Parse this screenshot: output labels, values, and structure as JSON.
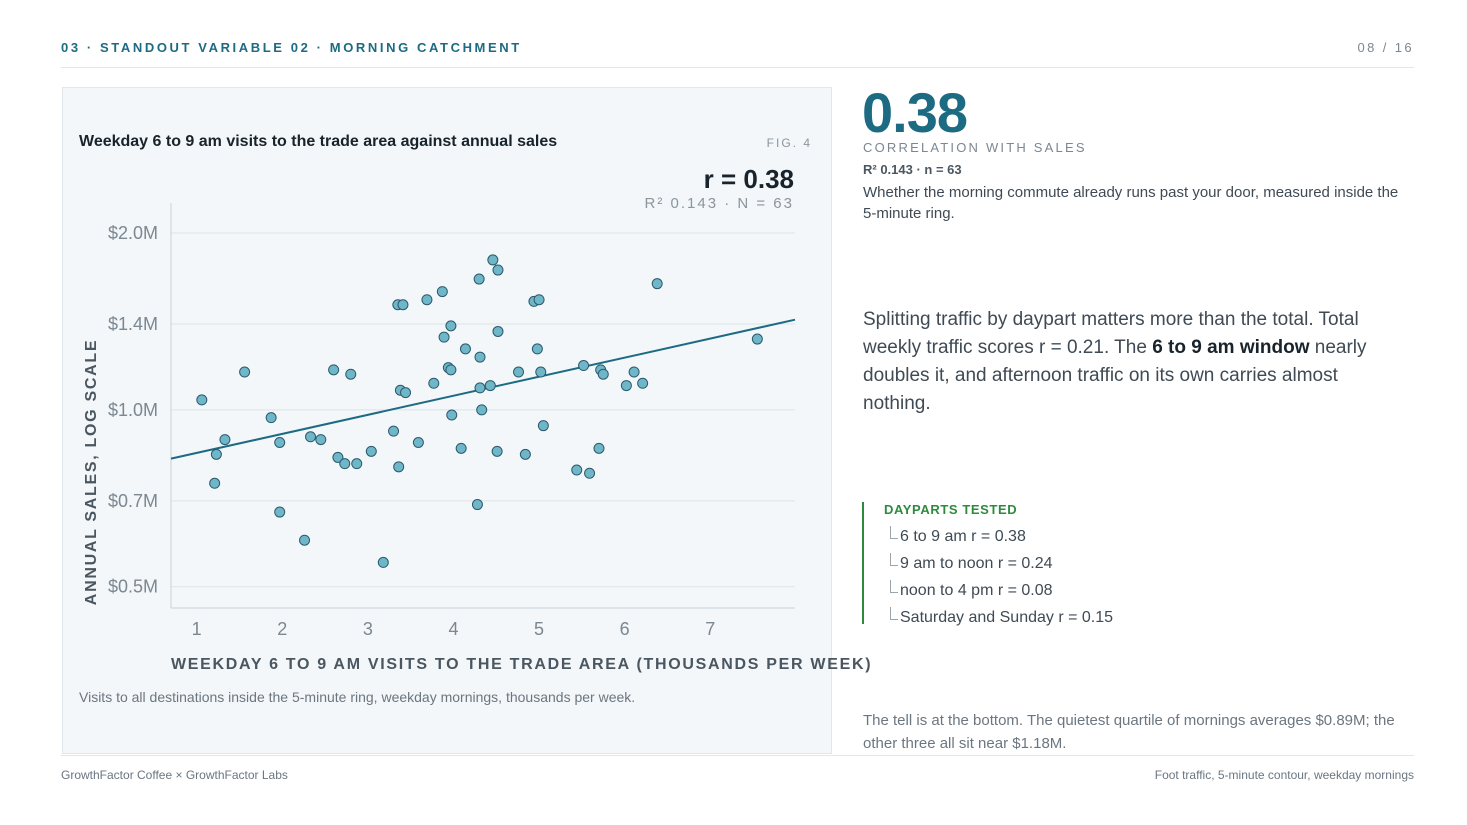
{
  "header": {
    "eyebrow": "03 · STANDOUT VARIABLE 02 · MORNING CATCHMENT",
    "pager": "08 / 16"
  },
  "figure": {
    "title": "Weekday 6 to 9 am visits to the trade area against annual sales",
    "fig_num": "FIG. 4",
    "r_label": "r = 0.38",
    "r_sub": "R² 0.143 · N = 63",
    "note": "Visits to all destinations inside the 5-minute ring, weekday mornings, thousands per week."
  },
  "stat": {
    "value": "0.38",
    "label": "CORRELATION WITH SALES",
    "sub": "R² 0.143 · n = 63",
    "desc": "Whether the morning commute already runs past your door, measured inside the 5-minute ring."
  },
  "body": {
    "p1": "Splitting traffic by daypart matters more than the total. Total weekly traffic scores r = 0.21. The ",
    "strong": "6 to 9 am window",
    "p2": " nearly doubles it, and afternoon traffic on its own carries almost nothing."
  },
  "dayparts": {
    "title": "DAYPARTS TESTED",
    "items": [
      "6 to 9 am  r = 0.38",
      "9 am to noon  r = 0.24",
      "noon to 4 pm  r = 0.08",
      "Saturday and Sunday  r = 0.15"
    ]
  },
  "tell": "The tell is at the bottom. The quietest quartile of mornings averages $0.89M; the other three all sit near $1.18M.",
  "footer": {
    "left": "GrowthFactor Coffee × GrowthFactor Labs",
    "right": "Foot traffic, 5-minute contour, weekday mornings"
  },
  "colors": {
    "accent": "#1d6a83",
    "point_fill": "#6fb6c9",
    "point_stroke": "#2a5a6b",
    "green": "#2e8b3e"
  },
  "chart_data": {
    "type": "scatter",
    "title": "Weekday 6 to 9 am visits to the trade area against annual sales",
    "xlabel": "WEEKDAY 6 TO 9 AM VISITS TO THE TRADE AREA (THOUSANDS PER WEEK)",
    "ylabel": "ANNUAL SALES, LOG SCALE",
    "x_scale": "linear",
    "y_scale": "log",
    "xlim": [
      0.7,
      7.99
    ],
    "ylim": [
      0.46,
      2.25
    ],
    "x_ticks": [
      1,
      2,
      3,
      4,
      5,
      6,
      7
    ],
    "x_tick_labels": [
      "1",
      "2",
      "3",
      "4",
      "5",
      "6",
      "7"
    ],
    "y_ticks": [
      0.5,
      0.7,
      1.0,
      1.4,
      2.0
    ],
    "y_tick_labels": [
      "$0.5M",
      "$0.7M",
      "$1.0M",
      "$1.4M",
      "$2.0M"
    ],
    "grid": "horizontal",
    "fit_line": {
      "x": [
        0.7,
        7.99
      ],
      "y": [
        0.826,
        1.424
      ]
    },
    "points": [
      {
        "x": 1.06,
        "y": 1.04
      },
      {
        "x": 1.23,
        "y": 0.84
      },
      {
        "x": 1.33,
        "y": 0.89
      },
      {
        "x": 1.21,
        "y": 0.75
      },
      {
        "x": 1.56,
        "y": 1.16
      },
      {
        "x": 1.87,
        "y": 0.97
      },
      {
        "x": 1.97,
        "y": 0.88
      },
      {
        "x": 1.97,
        "y": 0.67
      },
      {
        "x": 2.26,
        "y": 0.6
      },
      {
        "x": 2.33,
        "y": 0.9
      },
      {
        "x": 2.45,
        "y": 0.89
      },
      {
        "x": 2.6,
        "y": 1.17
      },
      {
        "x": 2.65,
        "y": 0.83
      },
      {
        "x": 2.73,
        "y": 0.81
      },
      {
        "x": 2.8,
        "y": 1.15
      },
      {
        "x": 2.87,
        "y": 0.81
      },
      {
        "x": 3.04,
        "y": 0.85
      },
      {
        "x": 3.18,
        "y": 0.55
      },
      {
        "x": 3.3,
        "y": 0.92
      },
      {
        "x": 3.35,
        "y": 1.51
      },
      {
        "x": 3.36,
        "y": 0.8
      },
      {
        "x": 3.38,
        "y": 1.08
      },
      {
        "x": 3.41,
        "y": 1.51
      },
      {
        "x": 3.44,
        "y": 1.07
      },
      {
        "x": 3.59,
        "y": 0.88
      },
      {
        "x": 3.69,
        "y": 1.54
      },
      {
        "x": 3.77,
        "y": 1.11
      },
      {
        "x": 3.87,
        "y": 1.59
      },
      {
        "x": 3.89,
        "y": 1.33
      },
      {
        "x": 3.94,
        "y": 1.18
      },
      {
        "x": 3.97,
        "y": 1.39
      },
      {
        "x": 3.97,
        "y": 1.17
      },
      {
        "x": 3.98,
        "y": 0.98
      },
      {
        "x": 4.09,
        "y": 0.86
      },
      {
        "x": 4.14,
        "y": 1.27
      },
      {
        "x": 4.28,
        "y": 0.69
      },
      {
        "x": 4.3,
        "y": 1.67
      },
      {
        "x": 4.31,
        "y": 1.23
      },
      {
        "x": 4.31,
        "y": 1.09
      },
      {
        "x": 4.33,
        "y": 1.0
      },
      {
        "x": 4.43,
        "y": 1.1
      },
      {
        "x": 4.46,
        "y": 1.8
      },
      {
        "x": 4.51,
        "y": 0.85
      },
      {
        "x": 4.52,
        "y": 1.36
      },
      {
        "x": 4.52,
        "y": 1.73
      },
      {
        "x": 4.76,
        "y": 1.16
      },
      {
        "x": 4.84,
        "y": 0.84
      },
      {
        "x": 4.94,
        "y": 1.53
      },
      {
        "x": 4.98,
        "y": 1.27
      },
      {
        "x": 5.0,
        "y": 1.54
      },
      {
        "x": 5.02,
        "y": 1.16
      },
      {
        "x": 5.05,
        "y": 0.94
      },
      {
        "x": 5.44,
        "y": 0.79
      },
      {
        "x": 5.52,
        "y": 1.19
      },
      {
        "x": 5.59,
        "y": 0.78
      },
      {
        "x": 5.7,
        "y": 0.86
      },
      {
        "x": 5.72,
        "y": 1.17
      },
      {
        "x": 5.75,
        "y": 1.15
      },
      {
        "x": 6.02,
        "y": 1.1
      },
      {
        "x": 6.11,
        "y": 1.16
      },
      {
        "x": 6.21,
        "y": 1.11
      },
      {
        "x": 6.38,
        "y": 1.64
      },
      {
        "x": 7.55,
        "y": 1.32
      }
    ]
  }
}
